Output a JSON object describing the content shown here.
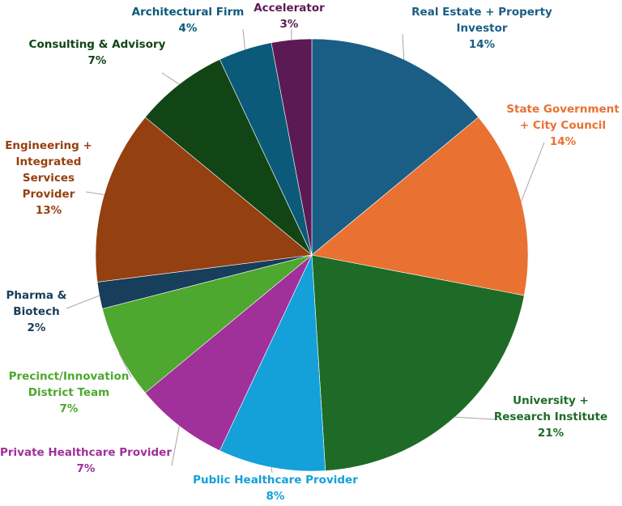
{
  "chart_data": {
    "type": "pie",
    "categories": [
      "Real Estate + Property Investor",
      "State Government + City Council",
      "University + Research Institute",
      "Public Healthcare Provider",
      "Private Healthcare Provider",
      "Precinct/Innovation District Team",
      "Pharma & Biotech",
      "Engineering + Integrated Services Provider",
      "Consulting & Advisory",
      "Architectural Firm",
      "Accelerator"
    ],
    "values": [
      14,
      14,
      21,
      8,
      7,
      7,
      2,
      13,
      7,
      4,
      3
    ],
    "value_labels": [
      "14%",
      "14%",
      "21%",
      "8%",
      "7%",
      "7%",
      "2%",
      "13%",
      "7%",
      "4%",
      "3%"
    ],
    "colors": [
      "#1a5e85",
      "#e97132",
      "#1e6b27",
      "#14a0d9",
      "#a0309a",
      "#4ea72e",
      "#173e5a",
      "#954010",
      "#124516",
      "#0b5a7a",
      "#5c1a54"
    ]
  }
}
